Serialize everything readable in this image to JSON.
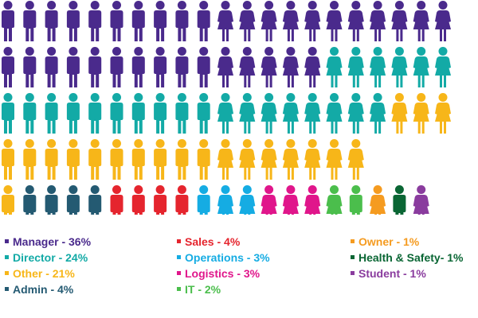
{
  "chart_data": {
    "type": "pictogram",
    "grid": {
      "columns": 21,
      "rows": 5
    },
    "fill_order": "row-major",
    "categories": [
      {
        "label": "Manager - 36%",
        "name": "Manager",
        "value": 36,
        "color": "#4a2a8c",
        "male": 20,
        "female": 16
      },
      {
        "label": "Director - 24%",
        "name": "Director",
        "value": 24,
        "color": "#13aaa6",
        "male": 10,
        "female": 14
      },
      {
        "label": "Other - 21%",
        "name": "Other",
        "value": 21,
        "color": "#f7b619",
        "male": 11,
        "female": 10
      },
      {
        "label": "Admin - 4%",
        "name": "Admin",
        "value": 4,
        "color": "#245a72",
        "male": 4,
        "female": 0
      },
      {
        "label": "Sales - 4%",
        "name": "Sales",
        "value": 4,
        "color": "#e5252e",
        "male": 4,
        "female": 0
      },
      {
        "label": "Operations - 3%",
        "name": "Operations",
        "value": 3,
        "color": "#15ace3",
        "male": 1,
        "female": 2
      },
      {
        "label": "Logistics - 3%",
        "name": "Logistics",
        "value": 3,
        "color": "#e0168b",
        "male": 0,
        "female": 3
      },
      {
        "label": "IT - 2%",
        "name": "IT",
        "value": 2,
        "color": "#4bbe4c",
        "male": 1,
        "female": 1
      },
      {
        "label": "Owner - 1%",
        "name": "Owner",
        "value": 1,
        "color": "#f59b20",
        "male": 0,
        "female": 1
      },
      {
        "label": "Health & Safety- 1%",
        "name": "Health & Safety",
        "value": 1,
        "color": "#0a6634",
        "male": 1,
        "female": 0
      },
      {
        "label": "Student - 1%",
        "name": "Student",
        "value": 1,
        "color": "#8a3c9e",
        "male": 0,
        "female": 1
      }
    ]
  }
}
